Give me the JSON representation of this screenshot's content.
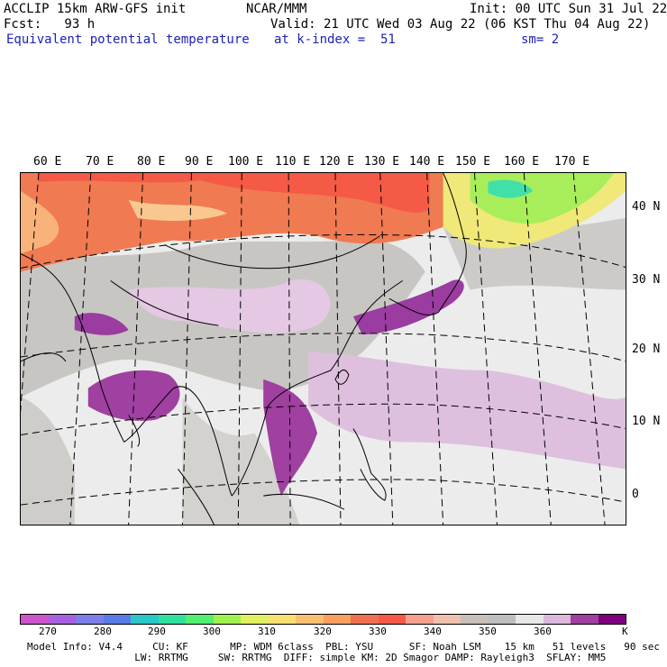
{
  "header": {
    "model": "ACCLIP 15km ARW-GFS init",
    "org": "NCAR/MMM",
    "init": "Init: 00 UTC Sun 31 Jul 22",
    "fcst": "Fcst:   93 h",
    "valid": "Valid: 21 UTC Wed 03 Aug 22 (06 KST Thu 04 Aug 22)",
    "field": "Equivalent potential temperature",
    "level": "at k-index =  51",
    "smooth": "sm= 2"
  },
  "longitude_labels": [
    "60 E",
    "70 E",
    "80 E",
    "90 E",
    "100 E",
    "110 E",
    "120 E",
    "130 E",
    "140 E",
    "150 E",
    "160 E",
    "170 E"
  ],
  "latitude_labels": [
    "40 N",
    "30 N",
    "20 N",
    "10 N",
    "0"
  ],
  "colorbar": {
    "colors": [
      "#cc55cc",
      "#a760e0",
      "#7d7ee8",
      "#5a7ae8",
      "#28c8c8",
      "#30e0a0",
      "#50f070",
      "#a0f050",
      "#e0f060",
      "#f8e070",
      "#f8c070",
      "#f8a060",
      "#f07050",
      "#f85848",
      "#f8a090",
      "#f0c0b0",
      "#c8c0b8",
      "#bebebe",
      "#e8e8e8",
      "#dcb8dc",
      "#a040a0",
      "#800080"
    ],
    "ticks": [
      "270",
      "280",
      "290",
      "300",
      "310",
      "320",
      "330",
      "340",
      "350",
      "360",
      "K"
    ]
  },
  "model_info": {
    "line1": "Model Info: V4.4     CU: KF       MP: WDM 6class  PBL: YSU      SF: Noah LSM    15 km   51 levels   90 sec",
    "line2": "                  LW: RRTMG     SW: RRTMG  DIFF: simple KM: 2D Smagor DAMP: Rayleigh3  SFLAY: MM5"
  }
}
